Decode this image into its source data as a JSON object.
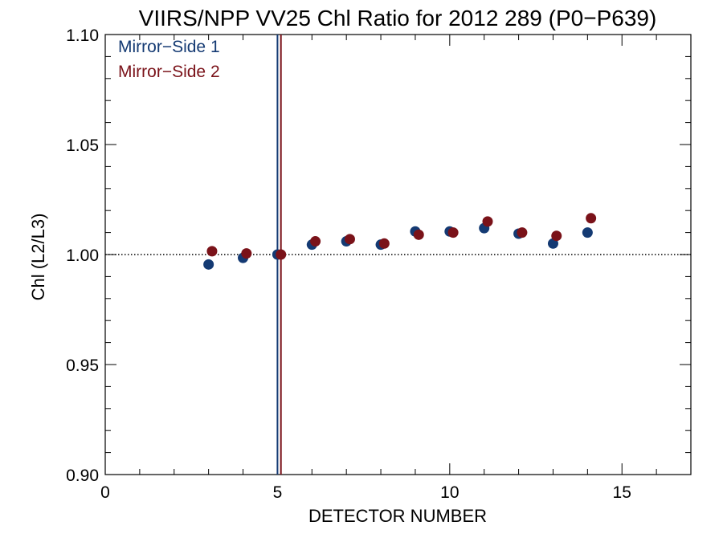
{
  "chart_data": {
    "type": "scatter",
    "title": "VIIRS/NPP VV25 Chl Ratio for 2012 289 (P0−P639)",
    "xlabel": "DETECTOR NUMBER",
    "ylabel": "Chl (L2/L3)",
    "xlim": [
      0,
      17
    ],
    "ylim": [
      0.9,
      1.1
    ],
    "x_ticks": [
      "0",
      "5",
      "10",
      "15"
    ],
    "y_ticks": [
      "0.90",
      "0.95",
      "1.00",
      "1.05",
      "1.10"
    ],
    "x_tick_values": [
      0,
      5,
      10,
      15
    ],
    "y_tick_values": [
      0.9,
      0.95,
      1.0,
      1.05,
      1.1
    ],
    "reference_line": {
      "y": 1.0,
      "style": "dotted"
    },
    "legend_placement": "top-left",
    "series": [
      {
        "name": "Mirror−Side 1",
        "color": "#143a73",
        "points": [
          {
            "x": 3,
            "y": 0.9955
          },
          {
            "x": 4,
            "y": 0.9985
          },
          {
            "x": 5,
            "y": 1.0
          },
          {
            "x": 6,
            "y": 1.0045
          },
          {
            "x": 7,
            "y": 1.006
          },
          {
            "x": 8,
            "y": 1.0045
          },
          {
            "x": 9,
            "y": 1.0105
          },
          {
            "x": 10,
            "y": 1.0105
          },
          {
            "x": 11,
            "y": 1.012
          },
          {
            "x": 12,
            "y": 1.0095
          },
          {
            "x": 13,
            "y": 1.005
          },
          {
            "x": 14,
            "y": 1.01
          }
        ],
        "vertical_line_x": 5.0
      },
      {
        "name": "Mirror−Side 2",
        "color": "#7a1219",
        "points": [
          {
            "x": 3.1,
            "y": 1.0015
          },
          {
            "x": 4.1,
            "y": 1.0005
          },
          {
            "x": 5.1,
            "y": 1.0
          },
          {
            "x": 6.1,
            "y": 1.006
          },
          {
            "x": 7.1,
            "y": 1.007
          },
          {
            "x": 8.1,
            "y": 1.005
          },
          {
            "x": 9.1,
            "y": 1.009
          },
          {
            "x": 10.1,
            "y": 1.01
          },
          {
            "x": 11.1,
            "y": 1.015
          },
          {
            "x": 12.1,
            "y": 1.01
          },
          {
            "x": 13.1,
            "y": 1.0085
          },
          {
            "x": 14.1,
            "y": 1.0165
          }
        ],
        "vertical_line_x": 5.1
      }
    ]
  }
}
